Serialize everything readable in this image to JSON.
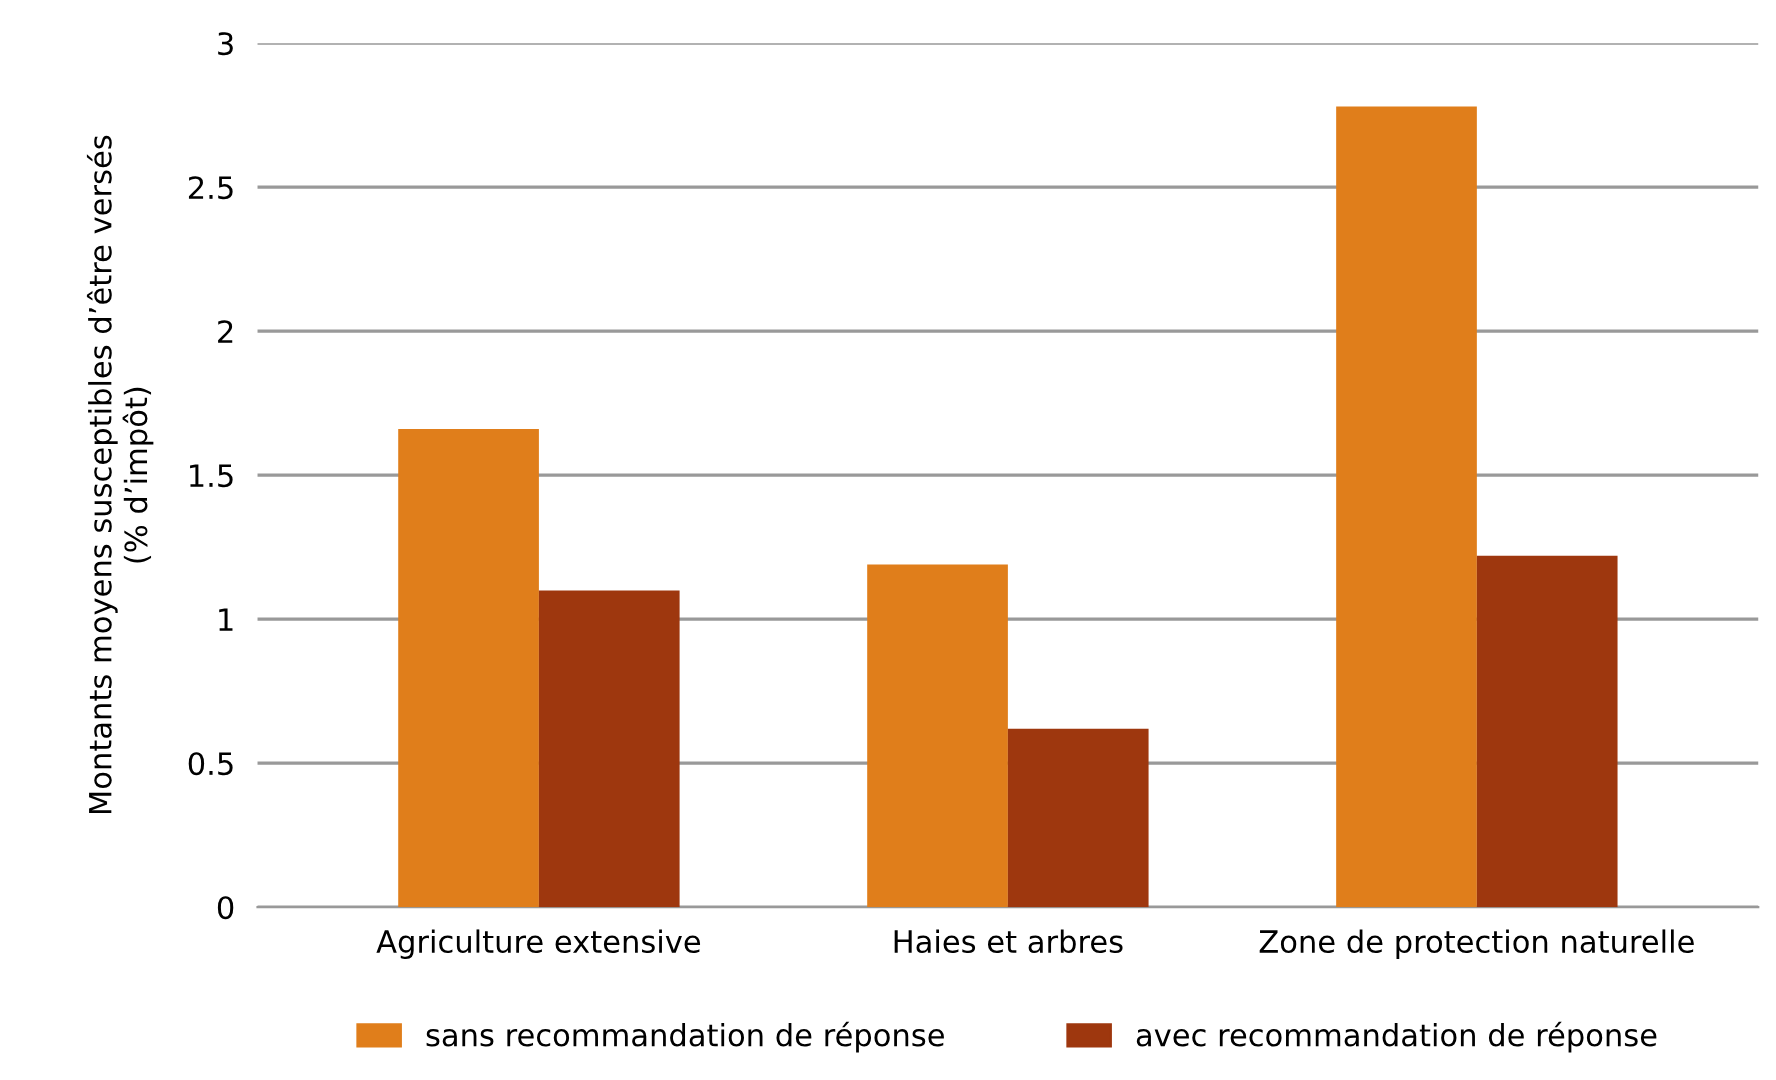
{
  "chart_data": {
    "type": "bar",
    "ylabel": "Montants moyens susceptibles d’être versés\n(% d’impôt)",
    "categories": [
      "Agriculture extensive",
      "Haies et arbres",
      "Zone de protection naturelle"
    ],
    "series": [
      {
        "name": "sans recommandation de réponse",
        "color": "#e07e1b",
        "values": [
          1.66,
          1.19,
          2.78
        ]
      },
      {
        "name": "avec recommandation de réponse",
        "color": "#9e370e",
        "values": [
          1.1,
          0.62,
          1.22
        ]
      }
    ],
    "ylim": [
      0,
      3
    ],
    "yticks": [
      0,
      0.5,
      1,
      1.5,
      2,
      2.5,
      3
    ],
    "grid": "y",
    "legend": "bottom"
  }
}
